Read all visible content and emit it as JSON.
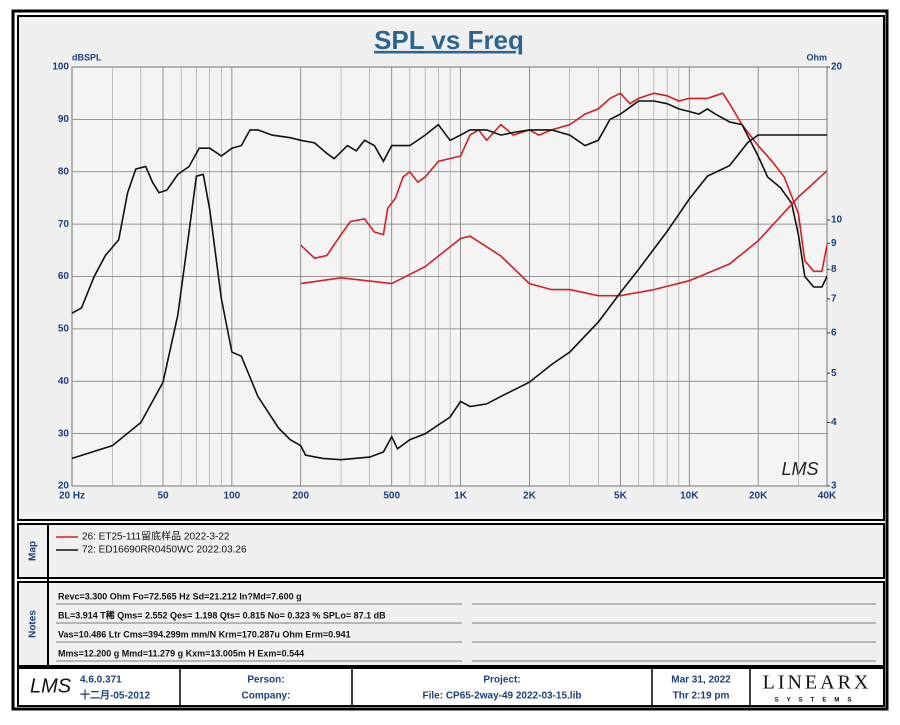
{
  "chart_data": {
    "type": "line",
    "title": "SPL vs Freq",
    "y_label": "dBSPL",
    "y2_label": "Ohm",
    "watermark": "LMS",
    "xlog": true,
    "y2log": true,
    "grid": true,
    "xlim": [
      20,
      40000
    ],
    "ylim": [
      20,
      100
    ],
    "y2lim": [
      3,
      20
    ],
    "xticks": [
      {
        "value": 20,
        "label": "20 Hz"
      },
      50,
      100,
      200,
      500,
      {
        "value": 1000,
        "label": "1K"
      },
      {
        "value": 2000,
        "label": "2K"
      },
      {
        "value": 5000,
        "label": "5K"
      },
      {
        "value": 10000,
        "label": "10K"
      },
      {
        "value": 20000,
        "label": "20K"
      },
      {
        "value": 40000,
        "label": "40K"
      }
    ],
    "xgrid": [
      30,
      40,
      60,
      70,
      80,
      90,
      300,
      400,
      600,
      700,
      800,
      900,
      3000,
      4000,
      6000,
      7000,
      8000,
      9000,
      30000
    ],
    "yticks": [
      20,
      30,
      40,
      50,
      60,
      70,
      80,
      90,
      100
    ],
    "y2ticks": [
      3,
      4,
      5,
      6,
      7,
      8,
      9,
      10,
      20
    ],
    "series": [
      {
        "name": "26: ET25-111留底样品 2022-3-22",
        "color": "#d42020",
        "x": [
          200,
          230,
          260,
          300,
          330,
          380,
          420,
          460,
          480,
          520,
          560,
          600,
          650,
          700,
          800,
          1000,
          1100,
          1200,
          1300,
          1500,
          1700,
          2000,
          2200,
          2500,
          3000,
          3500,
          4000,
          4500,
          5000,
          5500,
          6000,
          7000,
          8000,
          9000,
          10000,
          12000,
          14000,
          15000,
          17000,
          20000,
          23000,
          26000,
          30000,
          32000,
          35000,
          38000,
          40000
        ],
        "values": [
          66,
          63.5,
          64,
          68,
          70.5,
          71,
          68.5,
          68,
          73,
          75,
          79,
          80,
          78,
          79,
          82,
          83,
          87,
          88,
          86,
          89,
          87,
          88,
          87,
          88,
          89,
          91,
          92,
          94,
          95,
          93,
          94,
          95,
          94.5,
          93.5,
          94,
          94,
          95,
          93,
          89,
          85,
          82,
          79,
          72,
          63,
          61,
          61,
          66
        ]
      },
      {
        "name": "72: ED16690RR0450WC  2022.03.26",
        "color": "#111111",
        "x": [
          20,
          22,
          25,
          28,
          32,
          35,
          38,
          42,
          45,
          48,
          52,
          58,
          65,
          72,
          80,
          90,
          100,
          110,
          120,
          130,
          150,
          180,
          200,
          230,
          260,
          280,
          320,
          350,
          380,
          420,
          460,
          500,
          600,
          700,
          800,
          900,
          1000,
          1100,
          1300,
          1500,
          1700,
          2000,
          2500,
          3000,
          3500,
          4000,
          4500,
          5000,
          6000,
          7000,
          8000,
          9000,
          10000,
          11000,
          12000,
          13000,
          15000,
          17000,
          20000,
          22000,
          25000,
          28000,
          30000,
          32000,
          35000,
          38000,
          40000
        ],
        "values": [
          53,
          54,
          60,
          64,
          67,
          76,
          80.5,
          81,
          78,
          76,
          76.5,
          79.5,
          81,
          84.5,
          84.5,
          83,
          84.5,
          85,
          88,
          88,
          87,
          86.5,
          86,
          85.5,
          83.5,
          82.5,
          85,
          84,
          86,
          85,
          82,
          85,
          85,
          87,
          89,
          86,
          87,
          88,
          88,
          87,
          87.5,
          88,
          88,
          87,
          85,
          86,
          90,
          91,
          93.5,
          93.5,
          93,
          92,
          91.5,
          91,
          92,
          91,
          89.5,
          89,
          83,
          79,
          77,
          74,
          68,
          60,
          58,
          58,
          60
        ]
      },
      {
        "axis": "y2",
        "color": "#d42020",
        "x": [
          200,
          300,
          500,
          700,
          1000,
          1100,
          1500,
          2000,
          2500,
          3000,
          4000,
          5000,
          7000,
          10000,
          15000,
          20000,
          30000,
          40000
        ],
        "values": [
          7.5,
          7.7,
          7.5,
          8.1,
          9.2,
          9.3,
          8.5,
          7.5,
          7.3,
          7.3,
          7.1,
          7.1,
          7.3,
          7.6,
          8.2,
          9.1,
          11.1,
          12.5
        ]
      },
      {
        "axis": "y2",
        "color": "#111111",
        "x": [
          20,
          30,
          40,
          50,
          58,
          65,
          70,
          75,
          80,
          90,
          100,
          110,
          130,
          160,
          180,
          200,
          210,
          250,
          300,
          400,
          460,
          500,
          530,
          600,
          700,
          900,
          1000,
          1100,
          1300,
          1500,
          2000,
          2500,
          3000,
          4000,
          5000,
          6000,
          8000,
          10000,
          12000,
          15000,
          18000,
          20000,
          40000
        ],
        "values": [
          3.4,
          3.6,
          4.0,
          4.8,
          6.5,
          9.5,
          12.2,
          12.3,
          10.5,
          7,
          5.5,
          5.4,
          4.5,
          3.9,
          3.7,
          3.6,
          3.45,
          3.4,
          3.38,
          3.42,
          3.5,
          3.75,
          3.55,
          3.7,
          3.8,
          4.1,
          4.4,
          4.3,
          4.35,
          4.5,
          4.8,
          5.2,
          5.5,
          6.3,
          7.2,
          8.0,
          9.5,
          11,
          12.2,
          12.8,
          14.2,
          14.7,
          14.7
        ]
      }
    ]
  },
  "map": {
    "label": "Map"
  },
  "notes": {
    "label": "Notes",
    "lines": [
      "Revc=3.300 Ohm  Fo=72.565 Hz  Sd=21.212 In?Md=7.600 g",
      "BL=3.914 T稀  Qms= 2.552  Qes= 1.198  Qts= 0.815  No= 0.323 %  SPLo= 87.1 dB",
      "Vas=10.486 Ltr  Cms=394.299m mm/N  Krm=170.287u Ohm  Erm=0.941",
      "Mms=12.200 g  Mmd=11.279 g  Kxm=13.005m H  Exm=0.544"
    ]
  },
  "footer": {
    "logo": "LMS",
    "version": "4.6.0.371",
    "date": "十二月-05-2012",
    "person": "Person:",
    "company": "Company:",
    "project": "Project:",
    "file": "File: CP65-2way-49 2022-03-15.lib",
    "print_date": "Mar 31, 2022",
    "print_time": "Thr  2:19 pm",
    "brand": "LINEARX",
    "brand_sub": "SYSTEMS"
  }
}
